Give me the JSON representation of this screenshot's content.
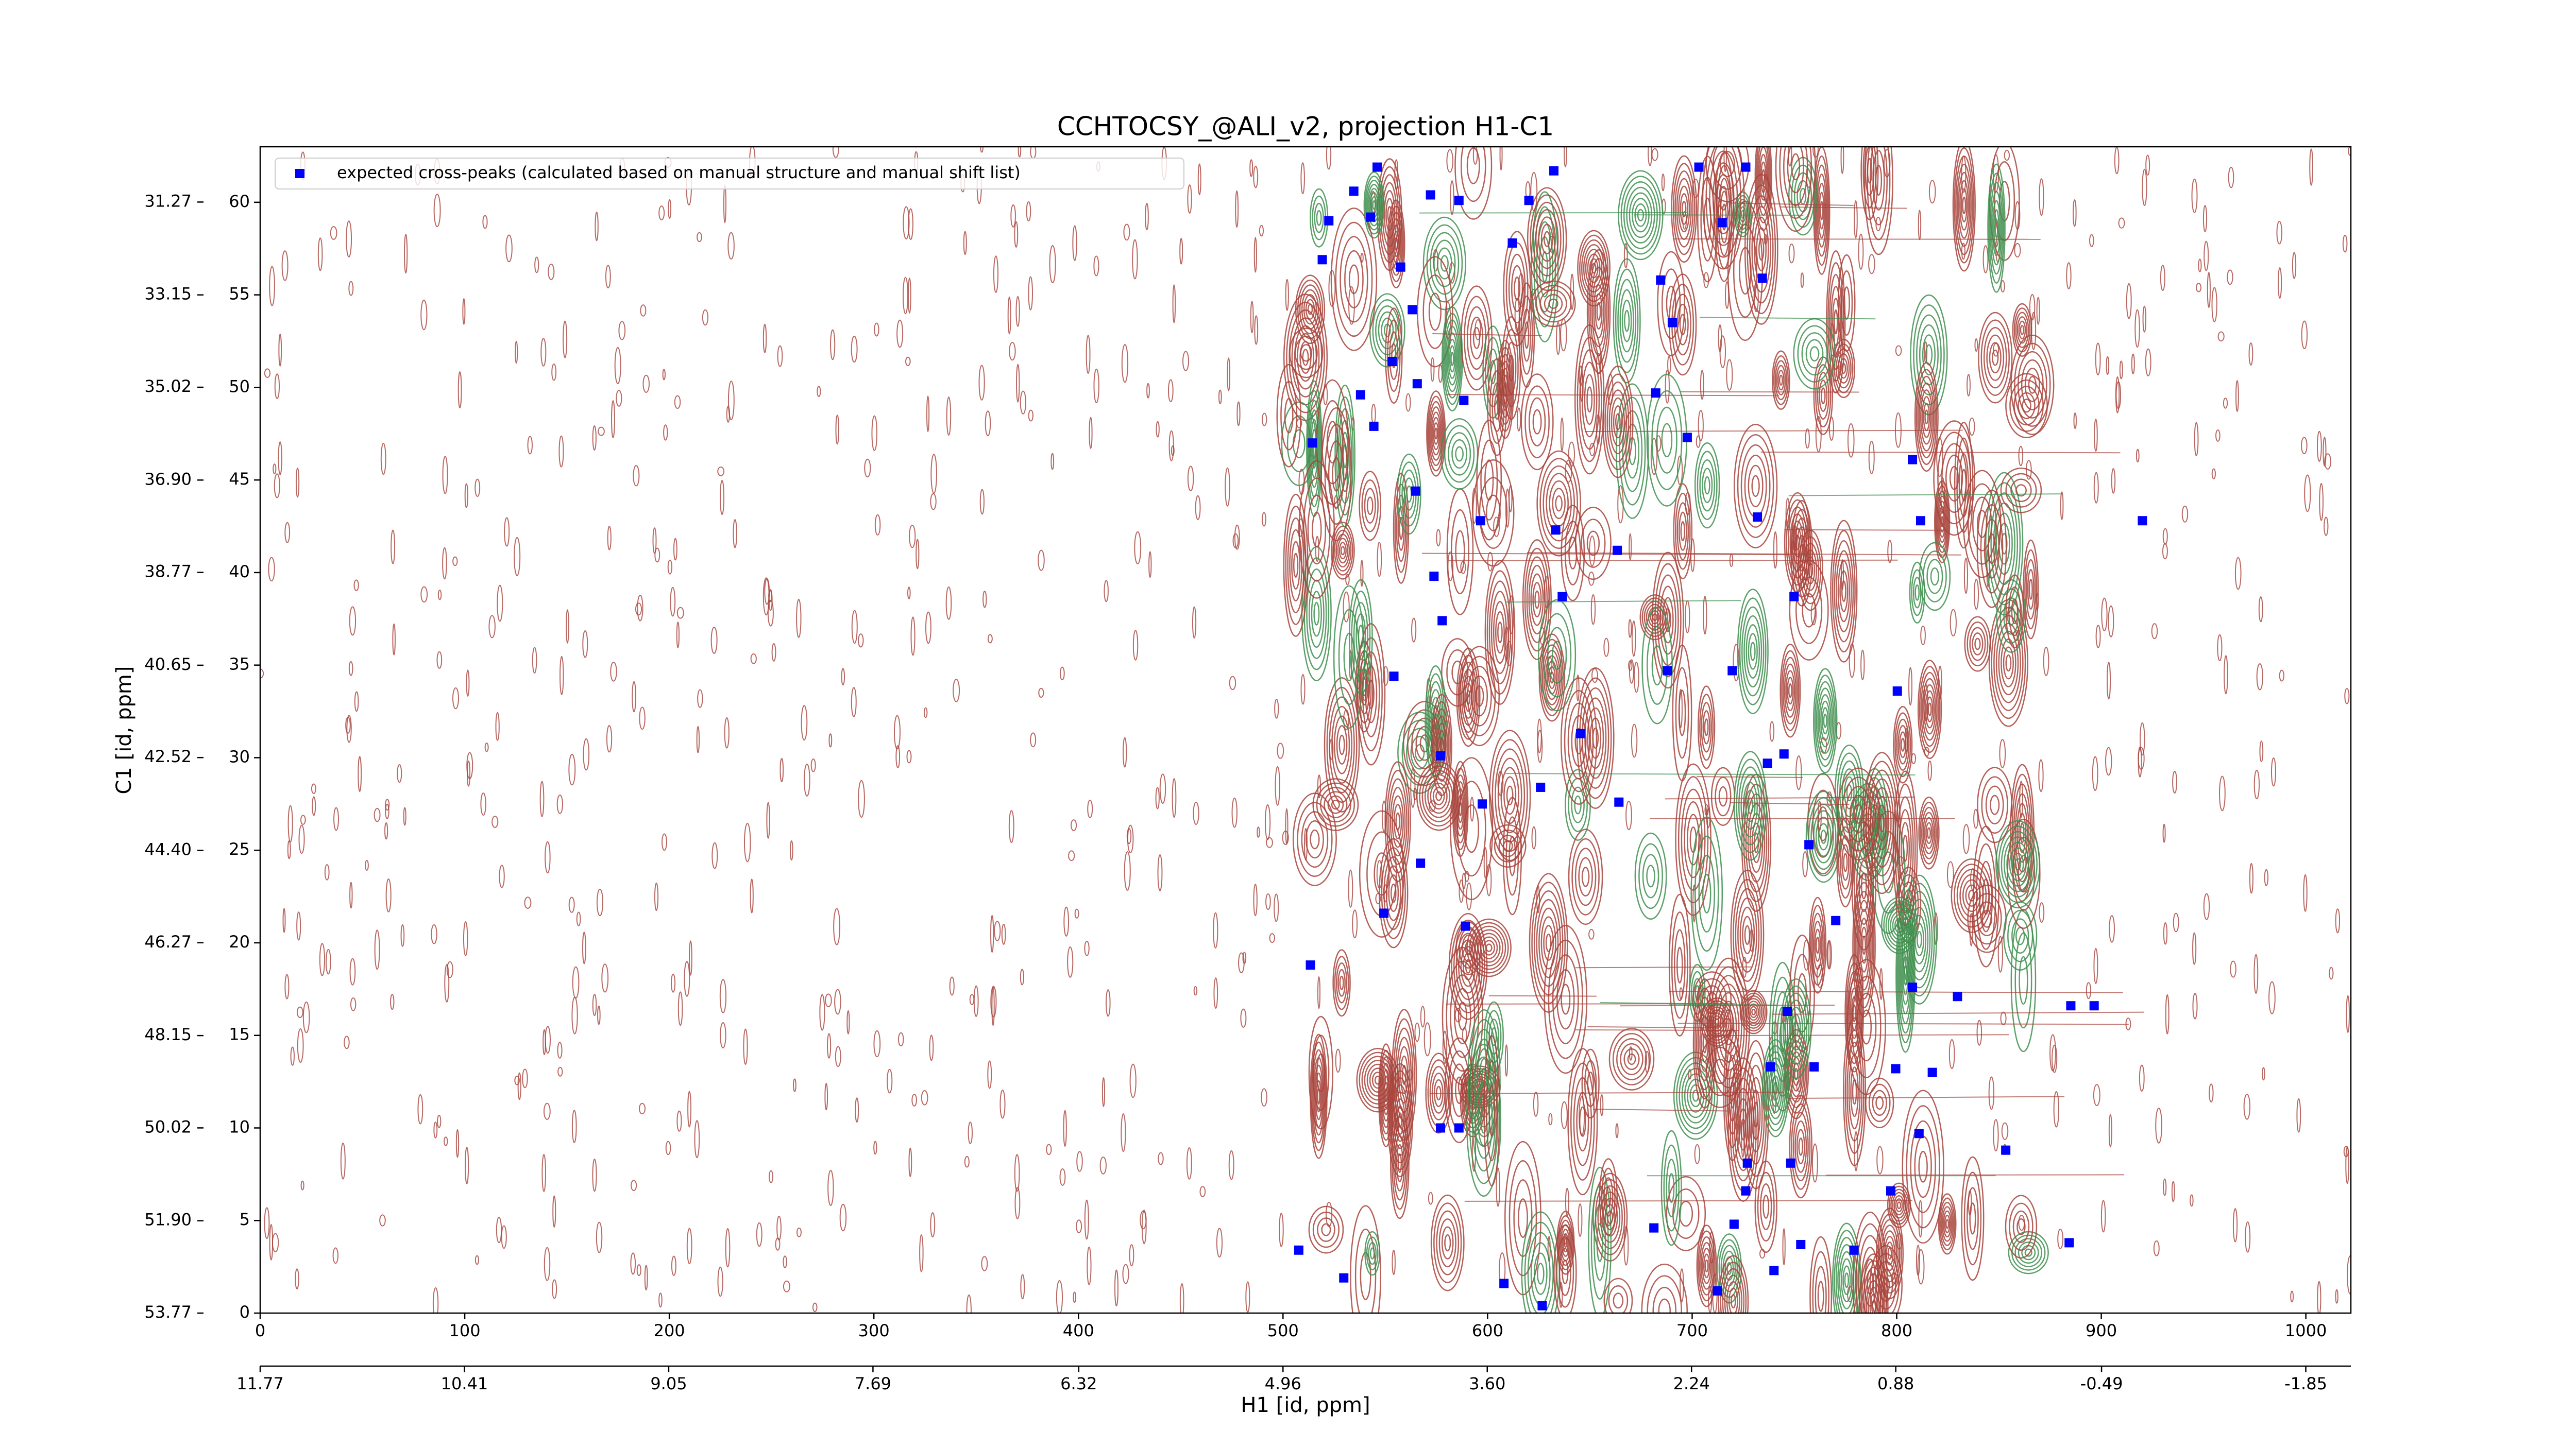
{
  "chart_data": {
    "type": "scatter",
    "title": "CCHTOCSY_@ALI_v2, projection H1-C1",
    "xlabel": "H1 [id, ppm]",
    "ylabel": "C1 [id, ppm]",
    "xlim": [
      0,
      1022
    ],
    "ylim": [
      0,
      63
    ],
    "xticks": [
      0,
      100,
      200,
      300,
      400,
      500,
      600,
      700,
      800,
      900,
      1000
    ],
    "yticks": [
      0,
      5,
      10,
      15,
      20,
      25,
      30,
      35,
      40,
      45,
      50,
      55,
      60
    ],
    "x2lim": [
      11.77,
      -2.15
    ],
    "x2ticks": [
      11.77,
      10.41,
      9.05,
      7.69,
      6.32,
      4.96,
      {
        "value": 3.6,
        "label": "3.60"
      },
      2.24,
      0.88,
      -0.49,
      -1.85
    ],
    "y2lim": [
      53.77,
      30.15
    ],
    "y2ticks": [
      31.27,
      33.15,
      35.02,
      {
        "value": 36.9,
        "label": "36.90"
      },
      38.77,
      40.65,
      42.52,
      {
        "value": 44.4,
        "label": "44.40"
      },
      46.27,
      48.15,
      50.02,
      {
        "value": 51.9,
        "label": "51.90"
      },
      53.77
    ],
    "legend": "upper left",
    "series": [
      {
        "name": "expected cross-peaks (calculated based on manual structure and manual shift list)",
        "color": "#0000ff",
        "marker": "square",
        "x": [
          519.2,
          522.4,
          534.6,
          546.0,
          542.8,
          557.5,
          572.1,
          586.0,
          563.2,
          553.4,
          537.9,
          565.6,
          588.4,
          514.3,
          544.4,
          596.6,
          564.8,
          612.1,
          632.4,
          620.2,
          684.6,
          690.3,
          703.3,
          714.7,
          726.2,
          734.3,
          682.2,
          697.6,
          731.9,
          807.7,
          811.7,
          920.1,
          573.8,
          577.8,
          554.2,
          633.3,
          636.5,
          663.4,
          687.9,
          719.6,
          749.8,
          800.3,
          577.0,
          597.4,
          625.9,
          645.5,
          664.2,
          736.8,
          744.9,
          757.1,
          567.2,
          549.3,
          589.2,
          513.4,
          770.2,
          807.7,
          829.7,
          885.1,
          896.5,
          746.5,
          738.4,
          759.6,
          799.5,
          817.4,
          577.0,
          586.0,
          810.9,
          853.3,
          797.1,
          727.0,
          748.2,
          726.2,
          681.3,
          720.5,
          753.1,
          779.1,
          884.3,
          507.7,
          529.7,
          608.0,
          626.7,
          712.3,
          740.0
        ],
        "y": [
          56.9,
          59.0,
          60.6,
          61.9,
          59.2,
          56.5,
          60.4,
          60.1,
          54.2,
          51.4,
          49.6,
          50.2,
          49.3,
          47.0,
          47.9,
          42.8,
          44.4,
          57.8,
          61.7,
          60.1,
          55.8,
          53.5,
          61.9,
          58.9,
          61.9,
          55.9,
          49.7,
          47.3,
          43.0,
          46.1,
          42.8,
          42.8,
          39.8,
          37.4,
          34.4,
          42.3,
          38.7,
          41.2,
          34.7,
          34.7,
          38.7,
          33.6,
          30.1,
          27.5,
          28.4,
          31.3,
          27.6,
          29.7,
          30.2,
          25.3,
          24.3,
          21.6,
          20.9,
          18.8,
          21.2,
          17.6,
          17.1,
          16.6,
          16.6,
          16.3,
          13.3,
          13.3,
          13.2,
          13.0,
          10.0,
          10.0,
          9.7,
          8.8,
          6.6,
          8.1,
          8.1,
          6.6,
          4.6,
          4.8,
          3.7,
          3.4,
          3.8,
          3.4,
          1.9,
          1.6,
          0.4,
          1.2,
          2.3
        ]
      }
    ]
  }
}
